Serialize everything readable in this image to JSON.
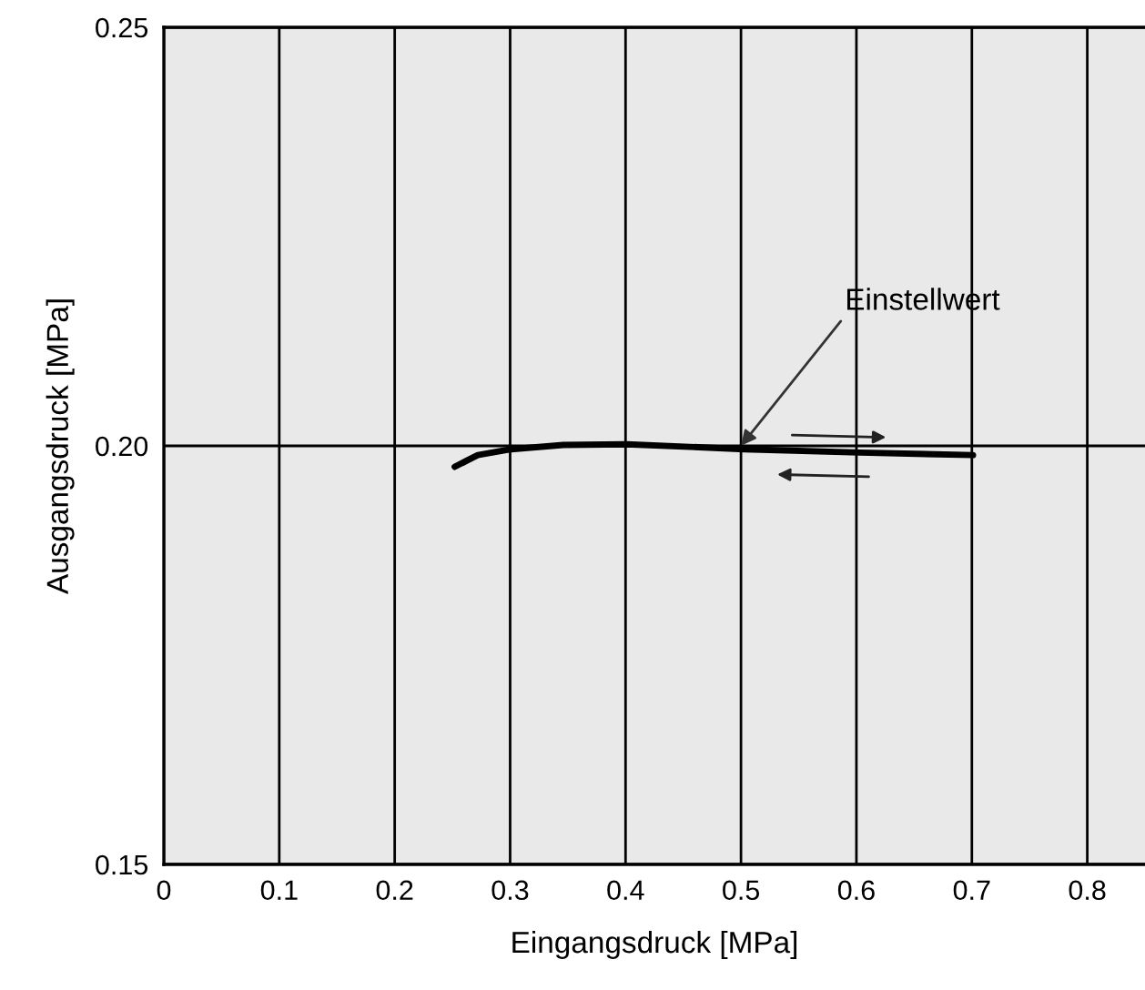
{
  "chart_data": {
    "type": "line",
    "xlabel": "Eingangsdruck [MPa]",
    "ylabel": "Ausgangsdruck [MPa]",
    "x": [
      0.252,
      0.272,
      0.301,
      0.346,
      0.401,
      0.503,
      0.603,
      0.701
    ],
    "series": [
      {
        "color": "#000000",
        "values": [
          0.1975,
          0.1989,
          0.1996,
          0.2001,
          0.2002,
          0.1996,
          0.1992,
          0.1989
        ]
      }
    ],
    "xlim": [
      0,
      0.85
    ],
    "ylim": [
      0.15,
      0.25
    ],
    "xticks": [
      0,
      0.1,
      0.2,
      0.3,
      0.4,
      0.5,
      0.6,
      0.7,
      0.8
    ],
    "yticks": [
      0.15,
      {
        "value": 0.2,
        "label": "0.20"
      },
      0.25
    ],
    "grid": true,
    "marker": "none",
    "line_style": "solid",
    "annotations": [
      {
        "text": "Einstellwert",
        "x": 0.5,
        "y": 0.2
      }
    ]
  }
}
